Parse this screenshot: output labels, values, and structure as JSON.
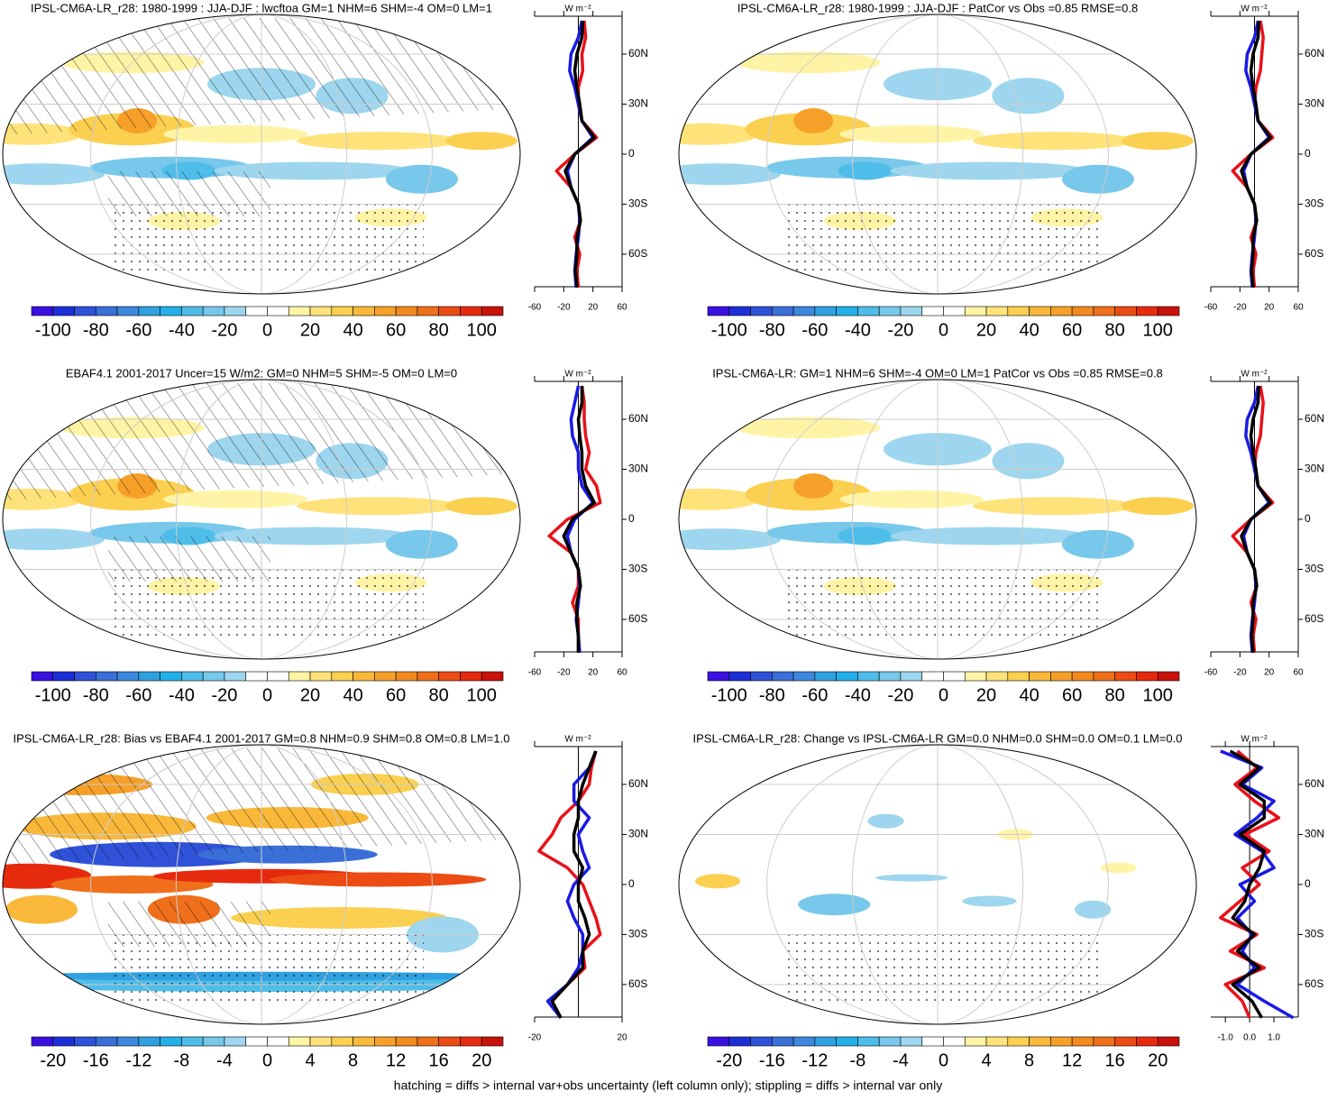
{
  "colorbar_colors": [
    "#3a10e0",
    "#1c2fd6",
    "#2f52d8",
    "#3a6fd8",
    "#3d88dc",
    "#2fa0e0",
    "#22b0ea",
    "#4fbde9",
    "#77c8ea",
    "#9dd6ee",
    "#ffffff",
    "#ffffff",
    "#fff4a6",
    "#ffe27a",
    "#fbd050",
    "#f9b83a",
    "#f6a02a",
    "#f28a1e",
    "#ef6f1a",
    "#ec4c14",
    "#e62a0e",
    "#c8120a"
  ],
  "caption": "hatching = diffs > internal var+obs uncertainty (left column only); stippling = diffs > internal var only",
  "chart_data": [
    {
      "type": "line",
      "title": "IPSL-CM6A-LR_r28: 1980-1999 : JJA-DJF : lwcftoa GM=1 NHM=6 SHM=-4 OM=0 LM=1",
      "unit_label": "W m⁻²",
      "colorbar_lim": [
        -110,
        110
      ],
      "colorbar_ticks": [
        -100,
        -80,
        -60,
        -40,
        -20,
        0,
        20,
        40,
        60,
        80,
        100
      ],
      "xlim": [
        -60,
        60
      ],
      "xticks": [
        -60,
        -20,
        20,
        60
      ],
      "ylim": [
        -79.5,
        82.7
      ],
      "yticks": [
        {
          "value": 60,
          "label": "60N"
        },
        {
          "value": 30,
          "label": "30N"
        },
        0,
        {
          "value": -30,
          "label": "30S"
        },
        {
          "value": -60,
          "label": "60S"
        }
      ],
      "lat": [
        80,
        70,
        60,
        50,
        40,
        30,
        20,
        10,
        0,
        -10,
        -20,
        -30,
        -40,
        -50,
        -60,
        -70,
        -80
      ],
      "series": [
        {
          "color": "#e8111a",
          "values": [
            8,
            10,
            5,
            6,
            0,
            0,
            5,
            25,
            -5,
            -30,
            -10,
            0,
            3,
            -5,
            2,
            -2,
            0
          ]
        },
        {
          "color": "#1a1ae6",
          "values": [
            5,
            0,
            -10,
            -12,
            -5,
            0,
            5,
            20,
            -5,
            -15,
            -10,
            0,
            2,
            0,
            -3,
            -5,
            -3
          ]
        },
        {
          "color": "#000000",
          "values": [
            6,
            5,
            -2,
            -5,
            -2,
            2,
            5,
            22,
            -5,
            -18,
            -10,
            0,
            3,
            -2,
            -2,
            -4,
            -2
          ]
        }
      ]
    },
    {
      "type": "line",
      "title": "IPSL-CM6A-LR_r28: 1980-1999 : JJA-DJF : PatCor vs Obs =0.85 RMSE=0.8",
      "unit_label": "W m⁻²",
      "colorbar_lim": [
        -110,
        110
      ],
      "colorbar_ticks": [
        -100,
        -80,
        -60,
        -40,
        -20,
        0,
        20,
        40,
        60,
        80,
        100
      ],
      "xlim": [
        -60,
        60
      ],
      "xticks": [
        -60,
        -20,
        20,
        60
      ],
      "ylim": [
        -79.5,
        82.7
      ],
      "yticks": [
        {
          "value": 60,
          "label": "60N"
        },
        {
          "value": 30,
          "label": "30N"
        },
        0,
        {
          "value": -30,
          "label": "30S"
        },
        {
          "value": -60,
          "label": "60S"
        }
      ],
      "lat": [
        80,
        70,
        60,
        50,
        40,
        30,
        20,
        10,
        0,
        -10,
        -20,
        -30,
        -40,
        -50,
        -60,
        -70,
        -80
      ],
      "series": [
        {
          "color": "#e8111a",
          "values": [
            8,
            12,
            10,
            8,
            2,
            0,
            5,
            25,
            -5,
            -30,
            -10,
            0,
            3,
            -5,
            2,
            -2,
            0
          ]
        },
        {
          "color": "#1a1ae6",
          "values": [
            5,
            0,
            -10,
            -12,
            -5,
            0,
            5,
            20,
            -5,
            -15,
            -10,
            0,
            2,
            0,
            -3,
            -5,
            -3
          ]
        },
        {
          "color": "#000000",
          "values": [
            6,
            5,
            -2,
            -5,
            -2,
            2,
            5,
            22,
            -5,
            -18,
            -10,
            0,
            3,
            -2,
            -2,
            -4,
            -2
          ]
        }
      ]
    },
    {
      "type": "line",
      "title": "EBAF4.1 2001-2017 Uncer=15 W/m2: GM=0 NHM=5 SHM=-5 OM=0 LM=0",
      "unit_label": "W m⁻²",
      "colorbar_lim": [
        -110,
        110
      ],
      "colorbar_ticks": [
        -100,
        -80,
        -60,
        -40,
        -20,
        0,
        20,
        40,
        60,
        80,
        100
      ],
      "xlim": [
        -60,
        60
      ],
      "xticks": [
        -60,
        -20,
        20,
        60
      ],
      "ylim": [
        -79.5,
        82.7
      ],
      "yticks": [
        {
          "value": 60,
          "label": "60N"
        },
        {
          "value": 30,
          "label": "30N"
        },
        0,
        {
          "value": -30,
          "label": "30S"
        },
        {
          "value": -60,
          "label": "60S"
        }
      ],
      "lat": [
        80,
        70,
        60,
        50,
        40,
        30,
        20,
        10,
        0,
        -10,
        -20,
        -30,
        -40,
        -50,
        -60,
        -70,
        -80
      ],
      "series": [
        {
          "color": "#e8111a",
          "values": [
            5,
            8,
            8,
            10,
            15,
            10,
            25,
            30,
            -15,
            -40,
            -10,
            0,
            0,
            -8,
            0,
            0,
            0
          ]
        },
        {
          "color": "#1a1ae6",
          "values": [
            0,
            -5,
            -10,
            -8,
            0,
            0,
            5,
            20,
            -5,
            -15,
            -10,
            0,
            2,
            0,
            -3,
            0,
            2
          ]
        },
        {
          "color": "#000000",
          "values": [
            5,
            5,
            0,
            2,
            5,
            5,
            10,
            22,
            -8,
            -20,
            -10,
            0,
            3,
            -2,
            -2,
            0,
            0
          ]
        }
      ]
    },
    {
      "type": "line",
      "title": "IPSL-CM6A-LR: GM=1 NHM=6 SHM=-4 OM=0 LM=1 PatCor vs Obs =0.85 RMSE=0.8",
      "unit_label": "W m⁻²",
      "colorbar_lim": [
        -110,
        110
      ],
      "colorbar_ticks": [
        -100,
        -80,
        -60,
        -40,
        -20,
        0,
        20,
        40,
        60,
        80,
        100
      ],
      "xlim": [
        -60,
        60
      ],
      "xticks": [
        -60,
        -20,
        20,
        60
      ],
      "ylim": [
        -79.5,
        82.7
      ],
      "yticks": [
        {
          "value": 60,
          "label": "60N"
        },
        {
          "value": 30,
          "label": "30N"
        },
        0,
        {
          "value": -30,
          "label": "30S"
        },
        {
          "value": -60,
          "label": "60S"
        }
      ],
      "lat": [
        80,
        70,
        60,
        50,
        40,
        30,
        20,
        10,
        0,
        -10,
        -20,
        -30,
        -40,
        -50,
        -60,
        -70,
        -80
      ],
      "series": [
        {
          "color": "#e8111a",
          "values": [
            8,
            12,
            10,
            8,
            2,
            0,
            5,
            25,
            -5,
            -30,
            -10,
            0,
            3,
            -5,
            2,
            -2,
            0
          ]
        },
        {
          "color": "#1a1ae6",
          "values": [
            5,
            0,
            -10,
            -12,
            -5,
            0,
            5,
            20,
            -5,
            -15,
            -10,
            0,
            2,
            0,
            -3,
            -5,
            -3
          ]
        },
        {
          "color": "#000000",
          "values": [
            6,
            5,
            -2,
            -5,
            -2,
            2,
            5,
            22,
            -5,
            -18,
            -10,
            0,
            3,
            -2,
            -2,
            -4,
            -2
          ]
        }
      ]
    },
    {
      "type": "line",
      "title": "IPSL-CM6A-LR_r28: Bias vs EBAF4.1 2001-2017 GM=0.8 NHM=0.9 SHM=0.8 OM=0.8 LM=1.0",
      "unit_label": "W m⁻²",
      "colorbar_lim": [
        -22,
        22
      ],
      "colorbar_ticks": [
        -20,
        -16,
        -12,
        -8,
        -4,
        0,
        4,
        8,
        12,
        16,
        20
      ],
      "xlim": [
        -20,
        20
      ],
      "xticks": [
        -20,
        20
      ],
      "ylim": [
        -79.5,
        82.7
      ],
      "yticks": [
        {
          "value": 60,
          "label": "60N"
        },
        {
          "value": 30,
          "label": "30N"
        },
        0,
        {
          "value": -30,
          "label": "30S"
        },
        {
          "value": -60,
          "label": "60S"
        }
      ],
      "lat": [
        80,
        70,
        60,
        50,
        40,
        30,
        20,
        10,
        0,
        -10,
        -20,
        -30,
        -40,
        -50,
        -60,
        -70,
        -80
      ],
      "series": [
        {
          "color": "#e8111a",
          "values": [
            8,
            6,
            5,
            0,
            -8,
            -12,
            -18,
            -5,
            2,
            5,
            8,
            10,
            2,
            3,
            -5,
            -12,
            -8
          ]
        },
        {
          "color": "#1a1ae6",
          "values": [
            8,
            5,
            -2,
            -2,
            5,
            0,
            2,
            5,
            -2,
            -5,
            -2,
            2,
            2,
            0,
            -5,
            -14,
            -8
          ]
        },
        {
          "color": "#000000",
          "values": [
            8,
            5,
            2,
            0,
            0,
            -2,
            -2,
            2,
            0,
            0,
            3,
            5,
            2,
            2,
            -5,
            -12,
            -8
          ]
        }
      ]
    },
    {
      "type": "line",
      "title": "IPSL-CM6A-LR_r28: Change vs IPSL-CM6A-LR GM=0.0 NHM=0.0 SHM=0.0 OM=0.1 LM=0.0",
      "unit_label": "W m⁻²",
      "colorbar_lim": [
        -22,
        22
      ],
      "colorbar_ticks": [
        -20,
        -16,
        -12,
        -8,
        -4,
        0,
        4,
        8,
        12,
        16,
        20
      ],
      "xlim": [
        -1.6,
        2.0
      ],
      "xticks": [
        {
          "value": -1,
          "label": "-1.0"
        },
        {
          "value": 0,
          "label": "0.0"
        },
        {
          "value": 1,
          "label": "1.0"
        }
      ],
      "ylim": [
        -79.5,
        82.7
      ],
      "yticks": [
        {
          "value": 60,
          "label": "60N"
        },
        {
          "value": 30,
          "label": "30N"
        },
        0,
        {
          "value": -30,
          "label": "30S"
        },
        {
          "value": -60,
          "label": "60S"
        }
      ],
      "lat": [
        80,
        70,
        60,
        50,
        40,
        30,
        20,
        10,
        0,
        -10,
        -20,
        -30,
        -40,
        -50,
        -60,
        -70,
        -80
      ],
      "series": [
        {
          "color": "#e8111a",
          "values": [
            -0.5,
            0.3,
            -0.6,
            0.2,
            1.2,
            -0.2,
            0.8,
            -0.3,
            0.4,
            -0.4,
            -1.2,
            0.3,
            -0.8,
            0.6,
            -1.0,
            -0.3,
            0
          ]
        },
        {
          "color": "#1a1ae6",
          "values": [
            -1.2,
            0.5,
            -0.3,
            1.0,
            0.3,
            -0.6,
            0.5,
            1.0,
            -0.4,
            0.2,
            -0.5,
            0.1,
            -0.3,
            0.2,
            -0.5,
            0.6,
            1.8
          ]
        },
        {
          "color": "#000000",
          "values": [
            -0.8,
            0.4,
            -0.4,
            0.6,
            0.6,
            -0.4,
            0.6,
            0.4,
            0,
            -0.2,
            -0.7,
            0.2,
            -0.5,
            0.4,
            -0.7,
            0.1,
            0.5
          ]
        }
      ]
    }
  ]
}
